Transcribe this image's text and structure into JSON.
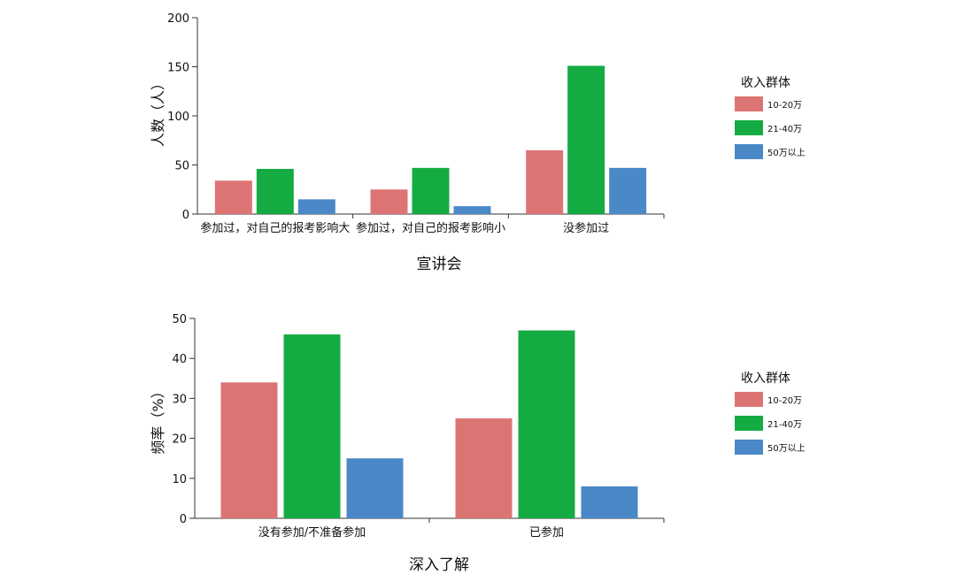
{
  "chart_data": [
    {
      "type": "bar",
      "categories": [
        "参加过，对自己的报考影响大",
        "参加过，对自己的报考影响小",
        "没参加过"
      ],
      "series": [
        {
          "name": "10-20万",
          "values": [
            34,
            25,
            65
          ]
        },
        {
          "name": "21-40万",
          "values": [
            46,
            47,
            151
          ]
        },
        {
          "name": "50万以上",
          "values": [
            15,
            8,
            47
          ]
        }
      ],
      "ylim": [
        0,
        200
      ],
      "yticks": [
        0,
        50,
        100,
        150,
        200
      ],
      "ylabel": "人数（人）",
      "xlabel": "宣讲会",
      "legend_title": "收入群体",
      "legend_position": "right"
    },
    {
      "type": "bar",
      "categories": [
        "没有参加/不准备参加",
        "已参加"
      ],
      "series": [
        {
          "name": "10-20万",
          "values": [
            34,
            25
          ]
        },
        {
          "name": "21-40万",
          "values": [
            46,
            47
          ]
        },
        {
          "name": "50万以上",
          "values": [
            15,
            8
          ]
        }
      ],
      "ylim": [
        0,
        50
      ],
      "yticks": [
        0,
        10,
        20,
        30,
        40,
        50
      ],
      "ylabel": "频率（%）",
      "xlabel": "深入了解",
      "legend_title": "收入群体",
      "legend_position": "right"
    }
  ],
  "colors": [
    "#dd7474",
    "#15ab43",
    "#4a88c8"
  ]
}
